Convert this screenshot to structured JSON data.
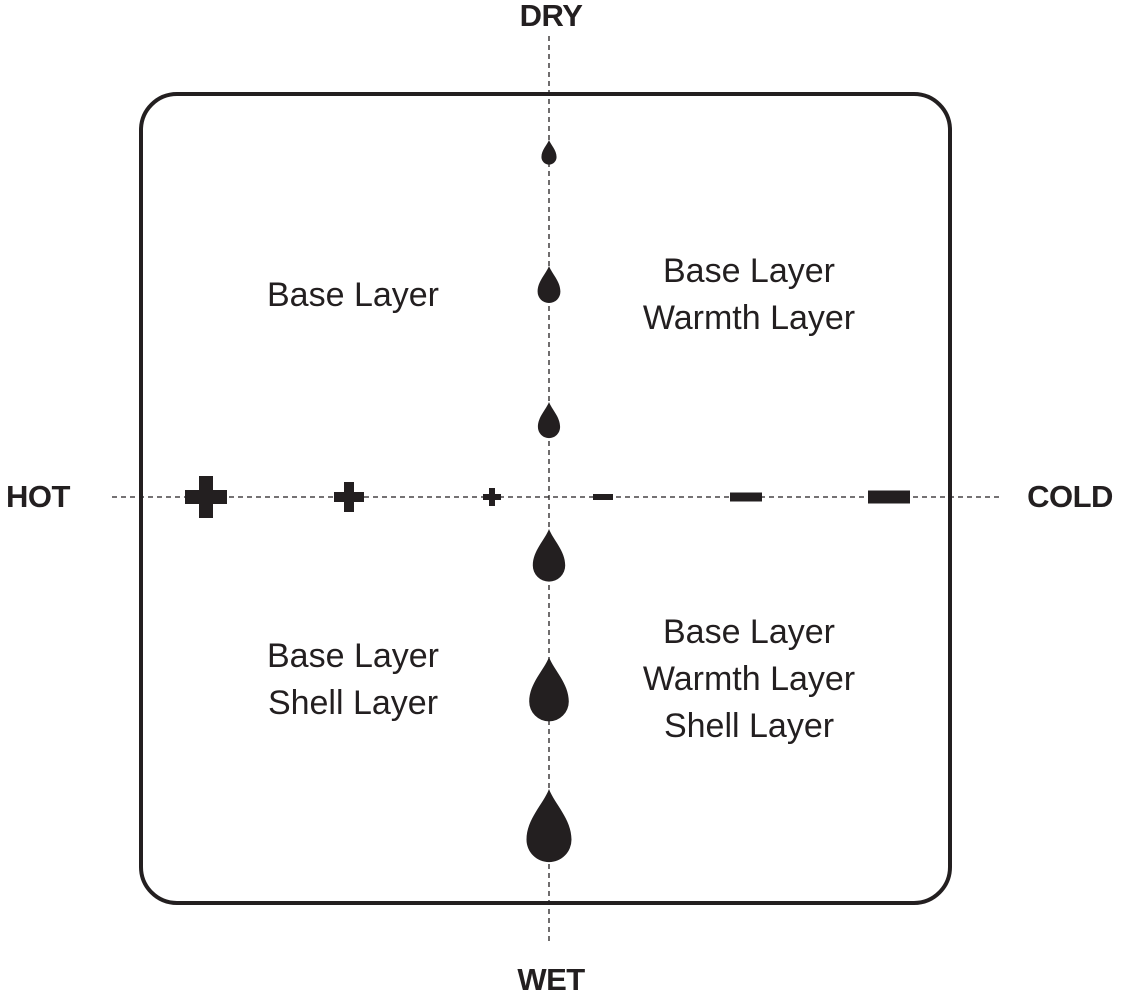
{
  "axes": {
    "top": "DRY",
    "bottom": "WET",
    "left": "HOT",
    "right": "COLD"
  },
  "quadrants": {
    "hot_dry": [
      "Base Layer"
    ],
    "cold_dry": [
      "Base Layer",
      "Warmth Layer"
    ],
    "hot_wet": [
      "Base Layer",
      "Shell Layer"
    ],
    "cold_wet": [
      "Base Layer",
      "Warmth Layer",
      "Shell Layer"
    ]
  },
  "icons": {
    "moisture": "water-drop-icon",
    "hot": "plus-icon",
    "cold": "minus-icon"
  },
  "colors": {
    "ink": "#231f20"
  }
}
